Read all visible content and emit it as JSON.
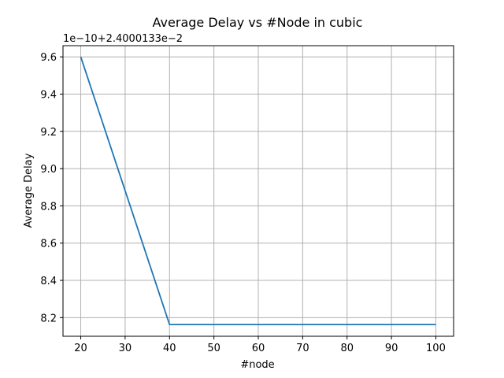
{
  "chart_data": {
    "type": "line",
    "title": "Average Delay vs #Node in cubic",
    "xlabel": "#node",
    "ylabel": "Average Delay",
    "y_offset_label": "1e−10+2.4000133e−2",
    "x": [
      20,
      40,
      60,
      80,
      100
    ],
    "series": [
      {
        "values": [
          9.6,
          8.163,
          8.163,
          8.163,
          8.163
        ]
      }
    ],
    "xlim": [
      16,
      104
    ],
    "ylim": [
      8.1,
      9.66
    ],
    "x_ticks": [
      20,
      30,
      40,
      50,
      60,
      70,
      80,
      90,
      100
    ],
    "x_tick_labels": [
      "20",
      "30",
      "40",
      "50",
      "60",
      "70",
      "80",
      "90",
      "100"
    ],
    "y_ticks": [
      8.2,
      8.4,
      8.6,
      8.8,
      9.0,
      9.2,
      9.4,
      9.6
    ],
    "y_tick_labels": [
      "8.2",
      "8.4",
      "8.6",
      "8.8",
      "9.0",
      "9.2",
      "9.4",
      "9.6"
    ],
    "grid": true,
    "line_color": "#1f77b4",
    "grid_color": "#b0b0b0"
  }
}
